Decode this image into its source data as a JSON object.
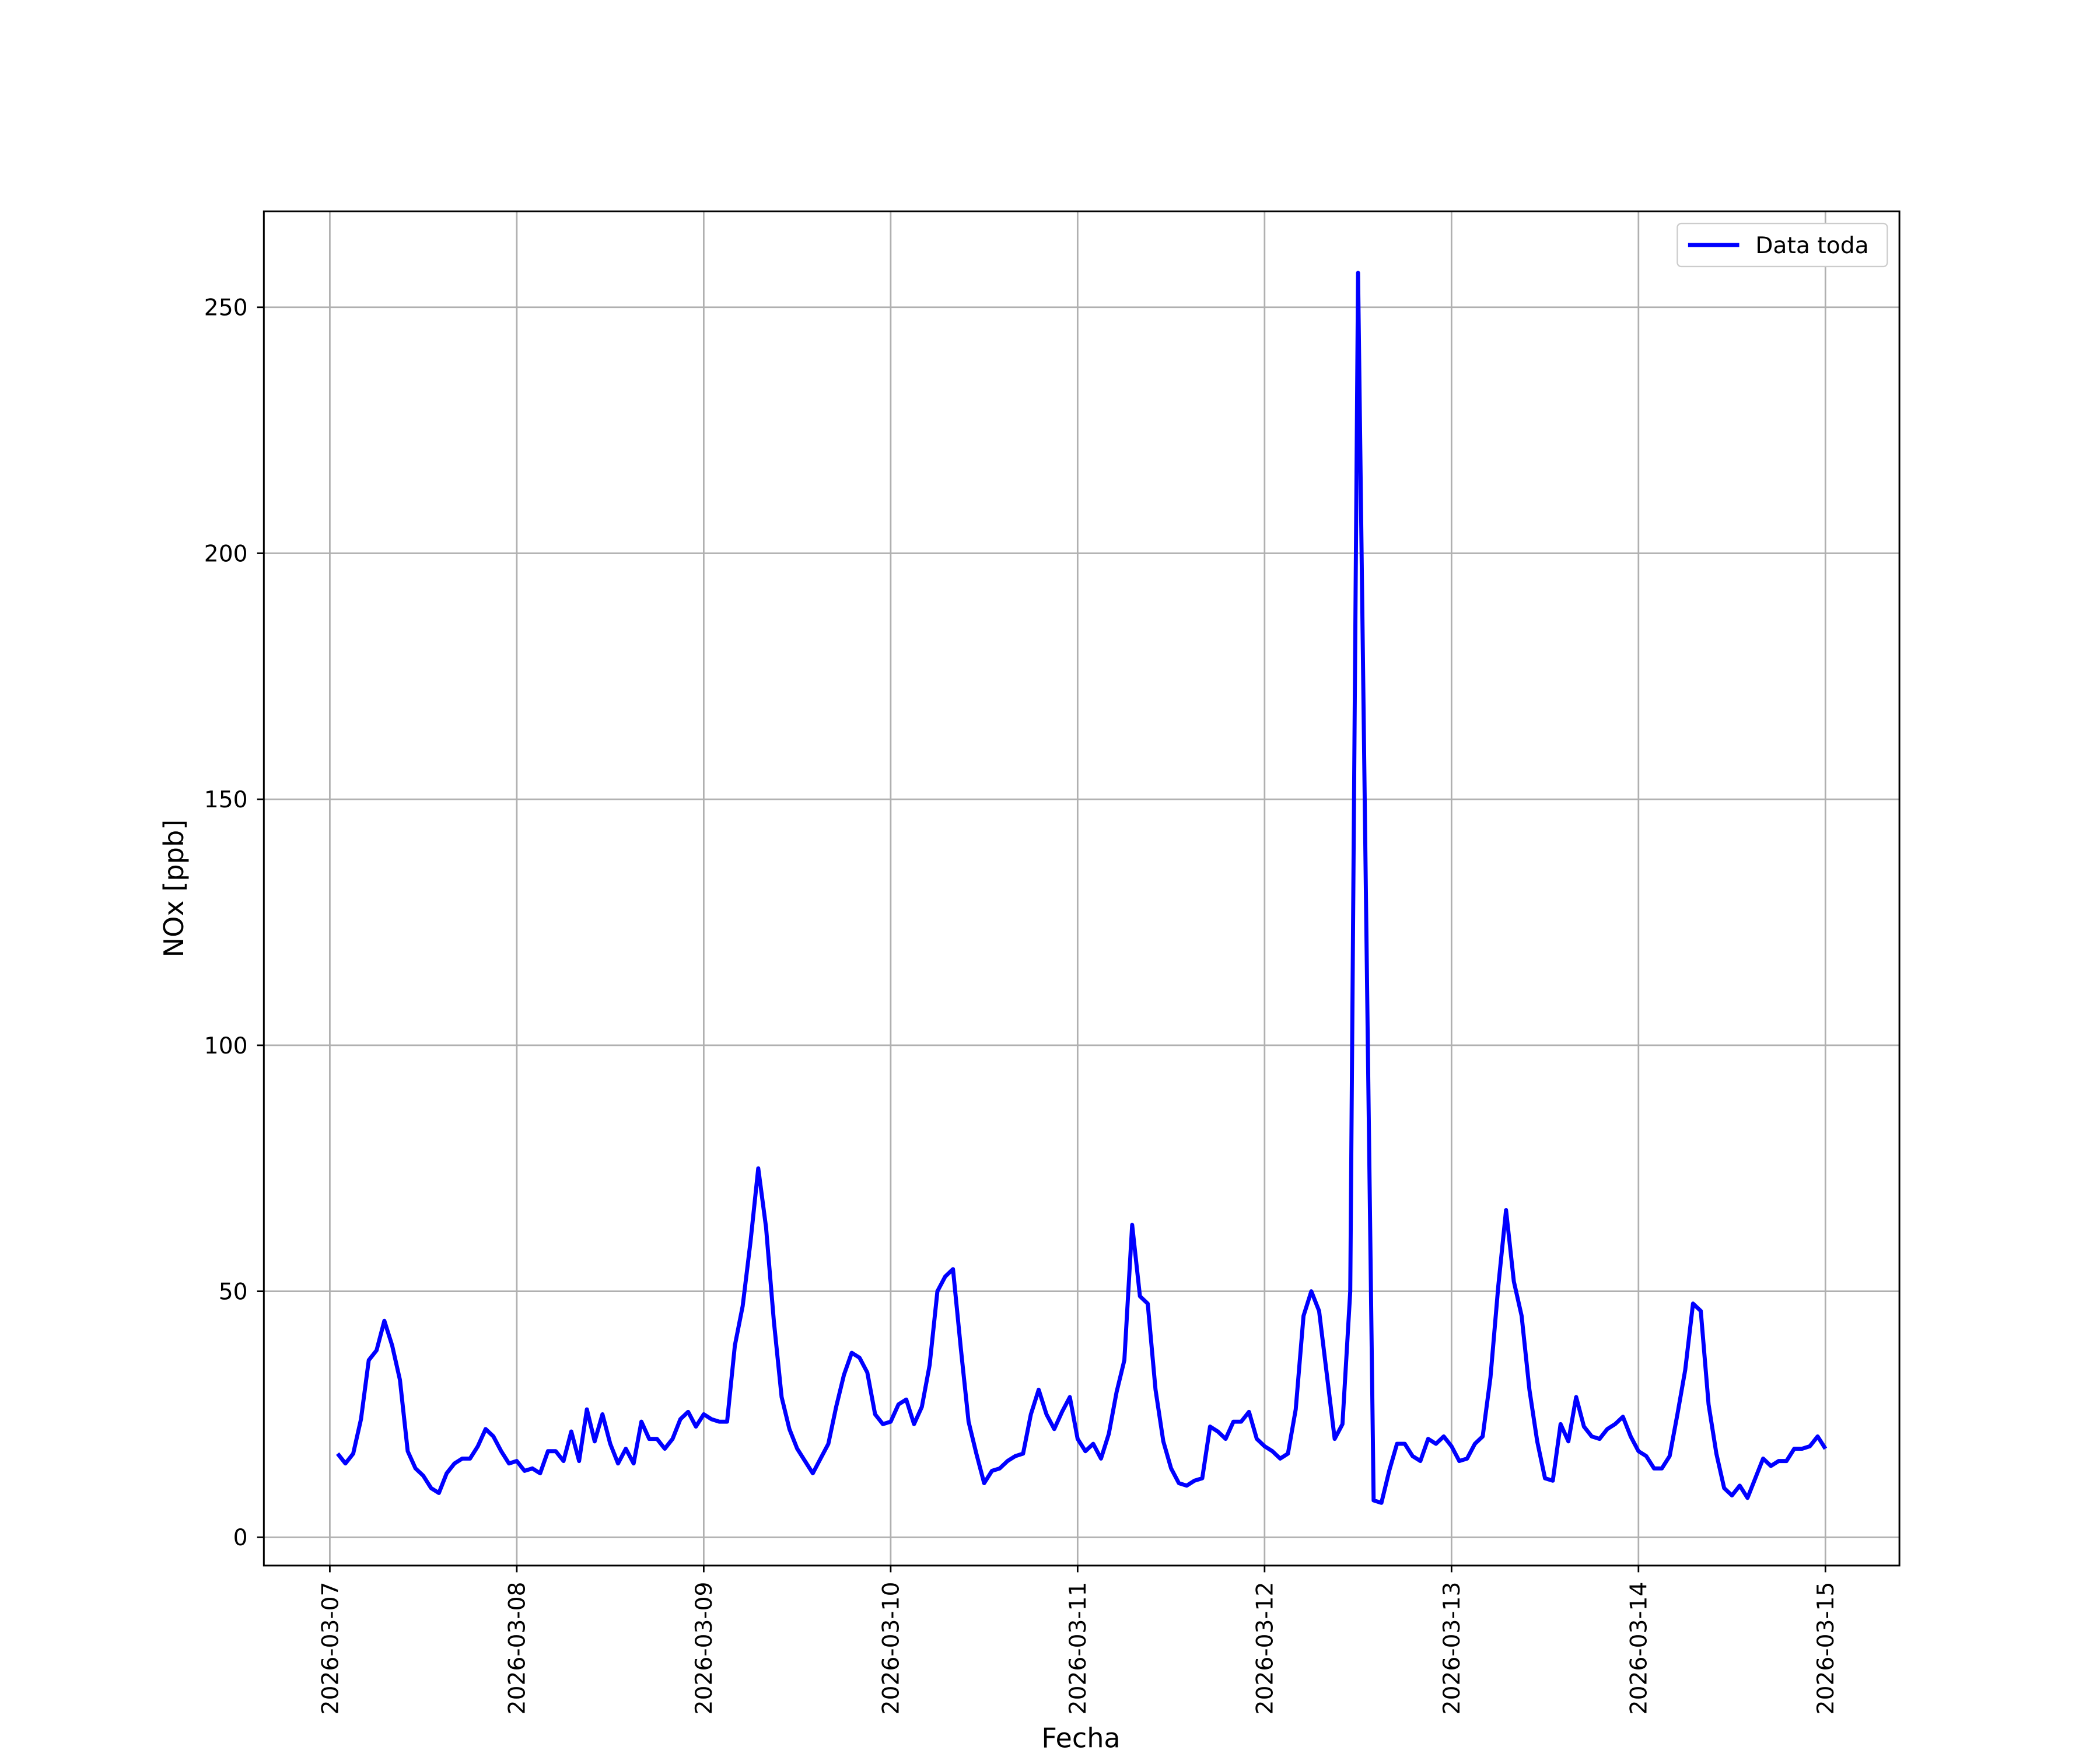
{
  "chart_data": {
    "type": "line",
    "xlabel": "Fecha",
    "ylabel": "NOx [ppb]",
    "x": [
      1,
      2,
      3,
      4,
      5,
      6,
      7,
      8,
      9,
      10,
      11,
      12,
      13,
      14,
      15,
      16,
      17,
      18,
      19,
      20,
      21,
      22,
      23,
      24,
      25,
      26,
      27,
      28,
      29,
      30,
      31,
      32,
      33,
      34,
      35,
      36,
      37,
      38,
      39,
      40,
      41,
      42,
      43,
      44,
      45,
      46,
      47,
      48,
      49,
      50,
      51,
      52,
      53,
      54,
      55,
      56,
      57,
      58,
      59,
      60,
      61,
      62,
      63,
      64,
      65,
      66,
      67,
      68,
      69,
      70,
      71,
      72,
      73,
      74,
      75,
      76,
      77,
      78,
      79,
      80,
      81,
      82,
      83,
      84,
      85,
      86,
      87,
      88,
      89,
      90,
      91,
      92,
      93,
      94,
      95,
      96,
      97,
      98,
      99,
      100,
      101,
      102,
      103,
      104,
      105,
      106,
      107,
      108,
      109,
      110,
      111,
      112,
      113,
      114,
      115,
      116,
      117,
      118,
      119,
      120,
      121,
      122,
      123,
      124,
      125,
      126,
      127,
      128,
      129,
      130,
      131,
      132,
      133,
      134,
      135,
      136,
      137,
      138,
      139,
      140,
      141,
      142,
      143,
      144,
      145,
      146,
      147,
      148,
      149,
      150,
      151,
      152,
      153,
      154,
      155,
      156,
      157,
      158,
      159,
      160,
      161,
      162,
      163,
      164,
      165,
      166,
      167,
      168,
      169,
      170,
      171,
      172,
      173,
      174,
      175,
      176,
      177,
      178,
      179,
      180,
      181,
      182,
      183,
      184,
      185,
      186,
      187,
      188,
      189,
      190,
      191,
      192
    ],
    "series": [
      {
        "name": "Data toda",
        "color": "#0000ff",
        "values": [
          17,
          15,
          17,
          24,
          36,
          38,
          44,
          39,
          32,
          17.5,
          14,
          12.5,
          10,
          9,
          13,
          15,
          16,
          16,
          18.5,
          22,
          20.5,
          17.5,
          15,
          15.5,
          13.5,
          14,
          13,
          17.5,
          17.5,
          15.5,
          21.5,
          15.5,
          26,
          19.5,
          25,
          19,
          15,
          18,
          15,
          23.5,
          20,
          20,
          18,
          20,
          24,
          25.5,
          22.5,
          25,
          24,
          23.5,
          23.5,
          39,
          47,
          60,
          75,
          63,
          44,
          28.5,
          22,
          18,
          15.5,
          13,
          16,
          19,
          26.5,
          33,
          37.5,
          36.5,
          33.5,
          25,
          23,
          23.5,
          27,
          28,
          23,
          26.5,
          35,
          50,
          53,
          54.5,
          38.5,
          23.5,
          17,
          11,
          13.5,
          14,
          15.5,
          16.5,
          17,
          25,
          30,
          25,
          22,
          25.5,
          28.5,
          20,
          17.5,
          19,
          16,
          21,
          29.5,
          36,
          63.5,
          49,
          47.5,
          30,
          19.5,
          14,
          11,
          10.5,
          11.5,
          12,
          22.5,
          21.5,
          20,
          23.5,
          23.5,
          25.5,
          20,
          18.5,
          17.5,
          16,
          17,
          26,
          45,
          50,
          46,
          33,
          20,
          23,
          50,
          257,
          132,
          7.5,
          7,
          13.5,
          19,
          19,
          16.5,
          15.5,
          20,
          19,
          20.5,
          18.5,
          15.5,
          16,
          19,
          20.5,
          32.5,
          51,
          66.5,
          52,
          45,
          30,
          19.5,
          12,
          11.5,
          23,
          19.5,
          28.5,
          22.5,
          20.5,
          20,
          22,
          23,
          24.5,
          20.5,
          17.5,
          16.5,
          14,
          14,
          16.5,
          25,
          34,
          47.5,
          46,
          27,
          17,
          10,
          8.5,
          10.5,
          8,
          12,
          16,
          14.5,
          15.5,
          15.5,
          18,
          18,
          18.5,
          20.5,
          18
        ]
      }
    ],
    "xlim": [
      -8.47,
      201.5
    ],
    "xticks": [
      {
        "value": 0,
        "label": "2026-03-07"
      },
      {
        "value": 24,
        "label": "2026-03-08"
      },
      {
        "value": 48,
        "label": "2026-03-09"
      },
      {
        "value": 72,
        "label": "2026-03-10"
      },
      {
        "value": 96,
        "label": "2026-03-11"
      },
      {
        "value": 120,
        "label": "2026-03-12"
      },
      {
        "value": 144,
        "label": "2026-03-13"
      },
      {
        "value": 168,
        "label": "2026-03-14"
      },
      {
        "value": 192,
        "label": "2026-03-15"
      }
    ],
    "ylim": [
      -5.75,
      269.5
    ],
    "yticks": [
      0,
      50,
      100,
      150,
      200,
      250
    ],
    "grid": true,
    "legend": "upper right"
  }
}
